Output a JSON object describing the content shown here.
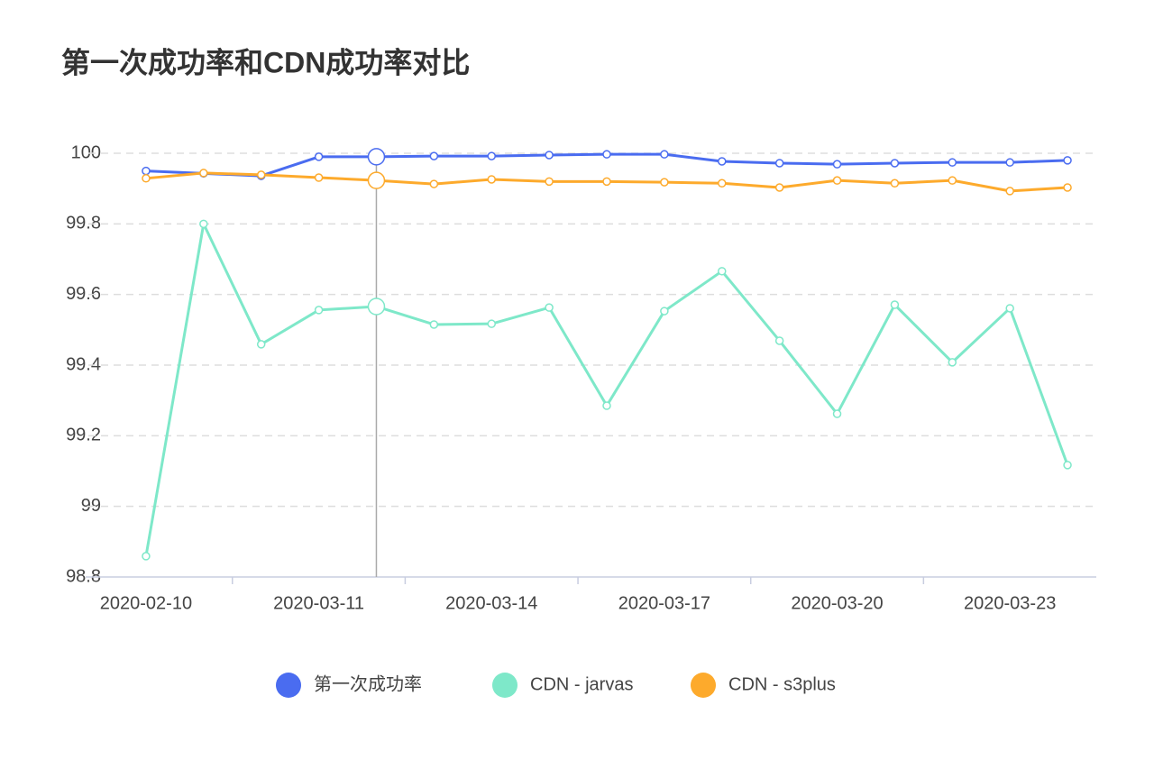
{
  "chart_data": {
    "type": "line",
    "title": "第一次成功率和CDN成功率对比",
    "categories": [
      "2020-02-10",
      null,
      null,
      "2020-03-11",
      null,
      null,
      "2020-03-14",
      null,
      null,
      "2020-03-17",
      null,
      null,
      "2020-03-20",
      null,
      null,
      "2020-03-23",
      null
    ],
    "series": [
      {
        "name": "第一次成功率",
        "color": "#4a6cf0",
        "values": [
          99.95,
          99.943,
          99.936,
          99.99,
          99.99,
          99.992,
          99.992,
          99.995,
          99.997,
          99.997,
          99.977,
          99.972,
          99.969,
          99.972,
          99.974,
          99.974,
          99.98
        ]
      },
      {
        "name": "CDN - jarvas",
        "color": "#7ee8c9",
        "values": [
          98.859,
          99.8,
          99.459,
          99.556,
          99.566,
          99.515,
          99.517,
          99.563,
          99.285,
          99.553,
          99.666,
          99.469,
          99.262,
          99.571,
          99.408,
          99.561,
          99.117
        ]
      },
      {
        "name": "CDN - s3plus",
        "color": "#fdaa2c",
        "values": [
          99.929,
          99.944,
          99.939,
          99.931,
          99.923,
          99.913,
          99.926,
          99.92,
          99.92,
          99.918,
          99.915,
          99.903,
          99.923,
          99.915,
          99.923,
          99.893,
          99.903
        ]
      }
    ],
    "ylim": [
      98.8,
      100
    ],
    "yticks": [
      98.8,
      99,
      99.2,
      99.4,
      99.6,
      99.8,
      100
    ],
    "grid": true,
    "legend": "bottom"
  }
}
